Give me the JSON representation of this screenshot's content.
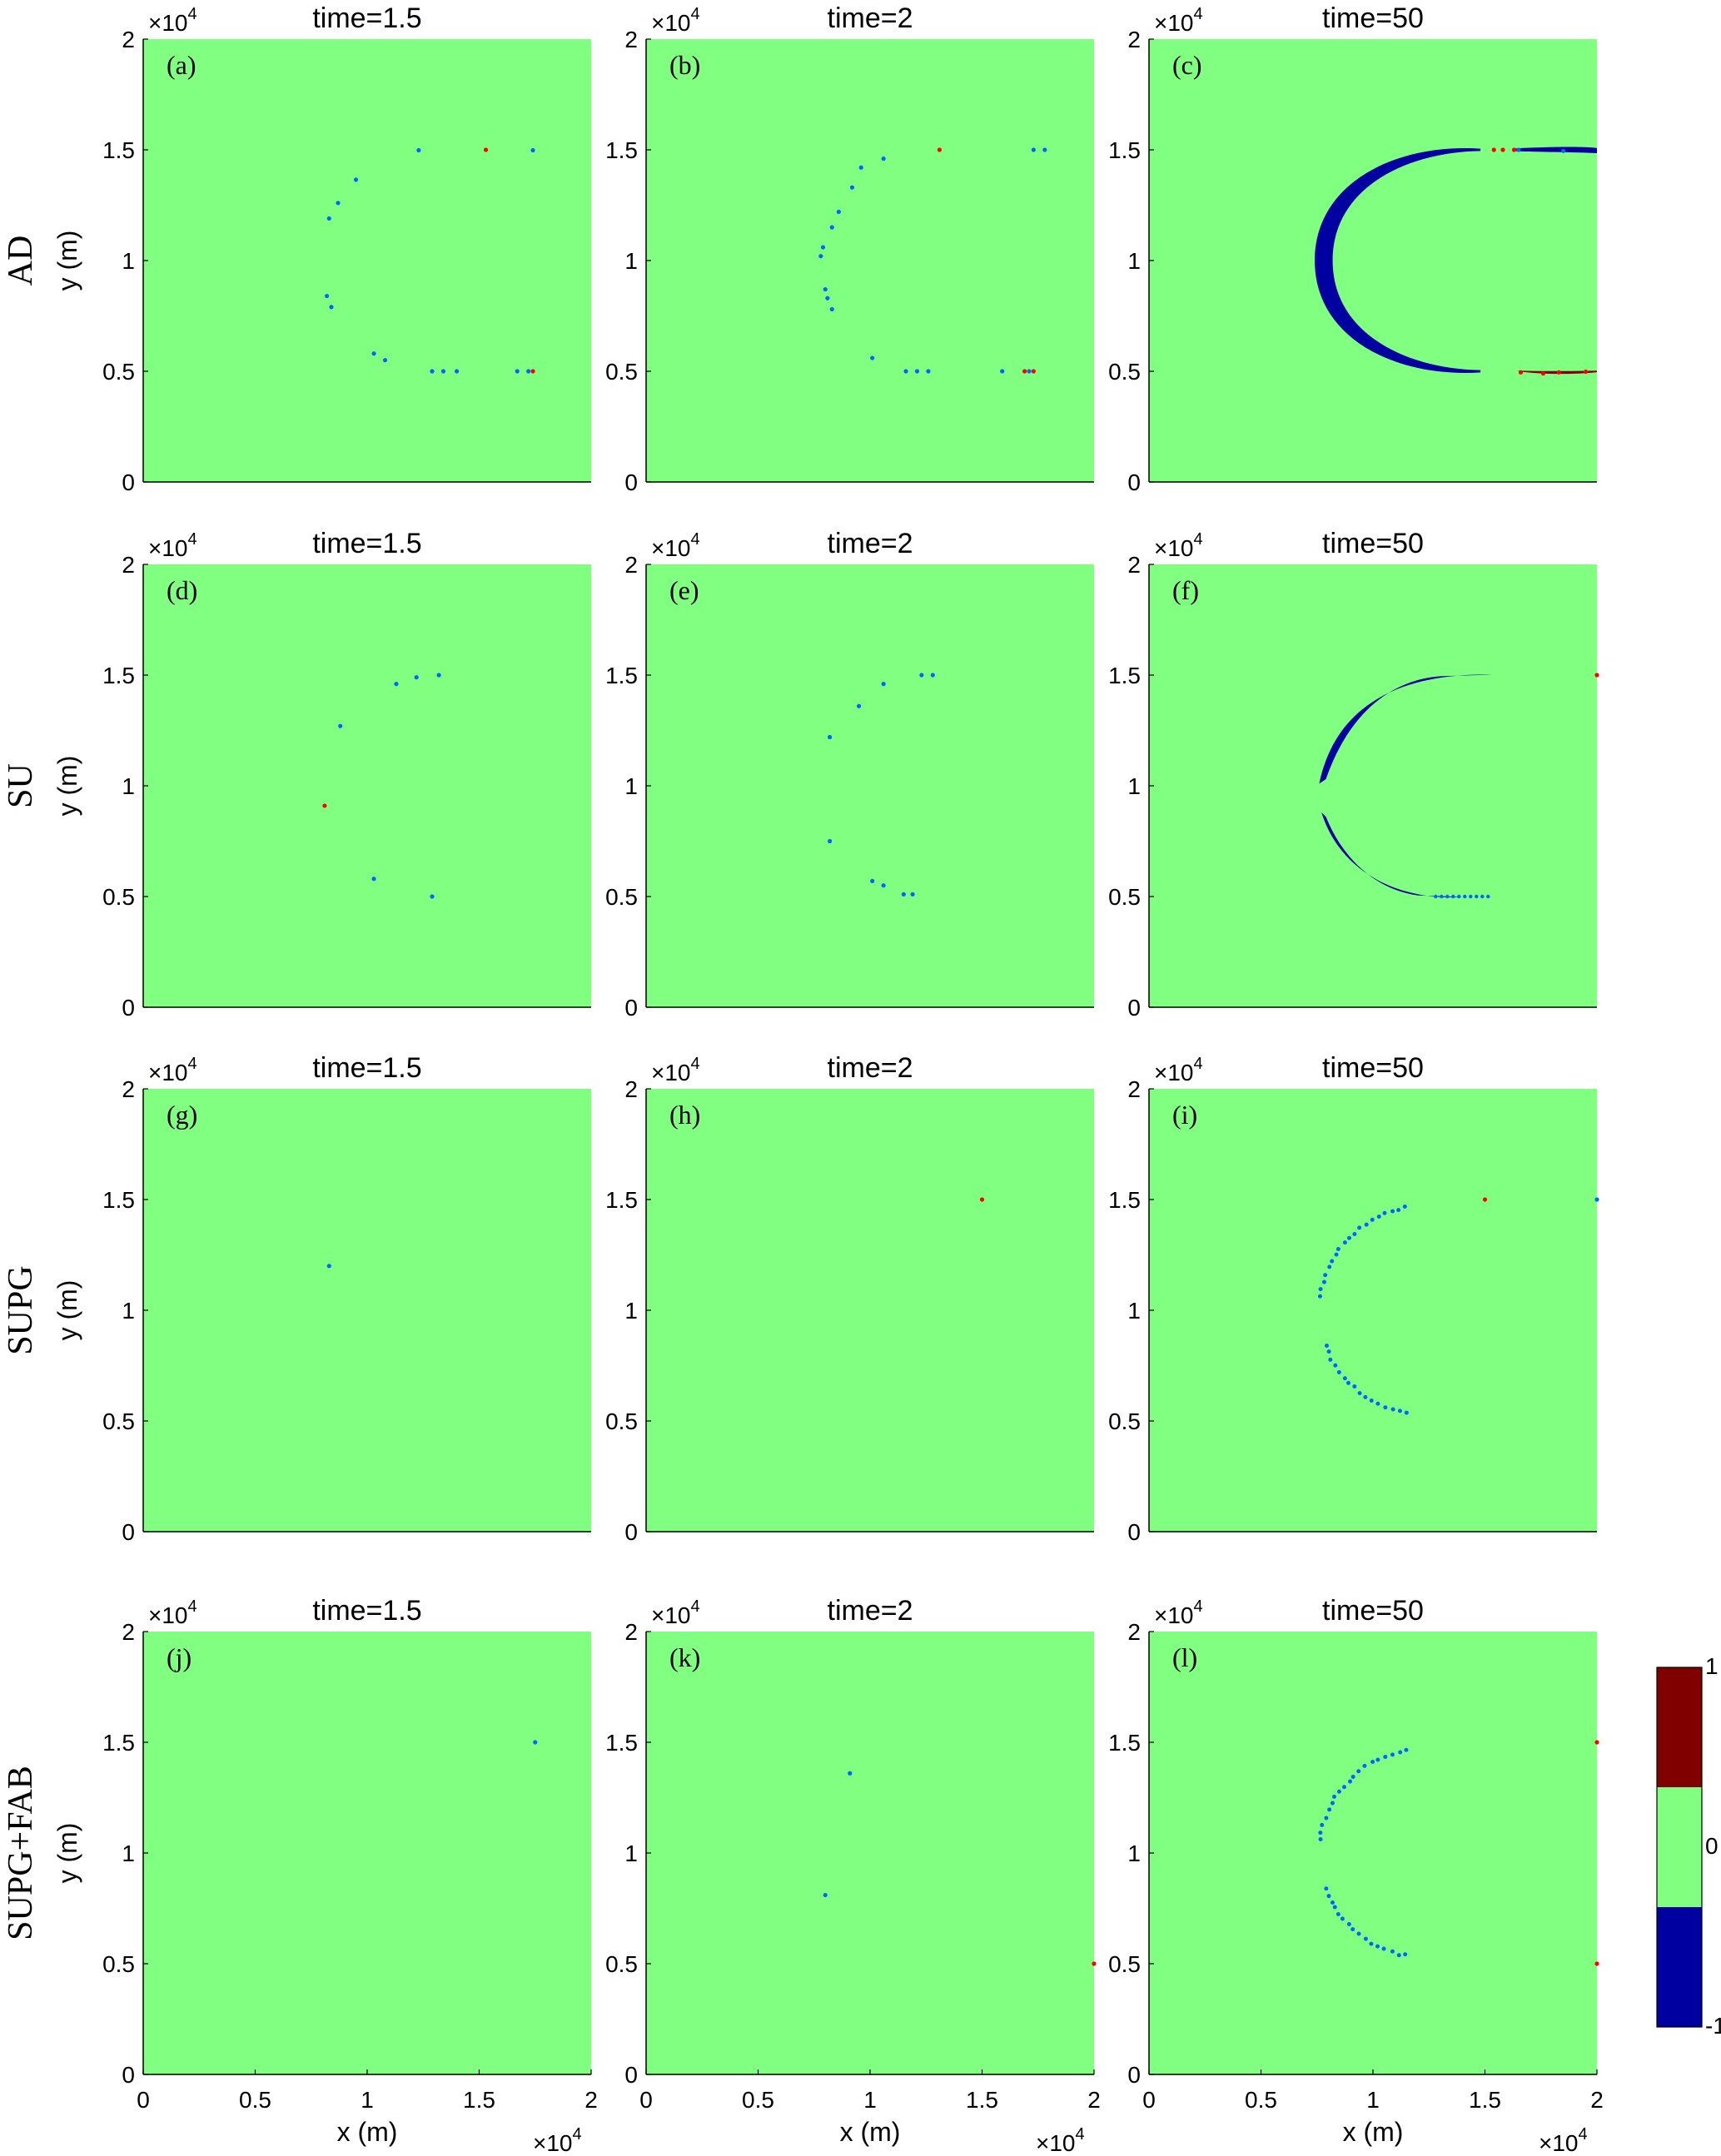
{
  "chart_data": {
    "type": "heatmap",
    "rows": [
      "AD",
      "SU",
      "SUPG",
      "SUPG+FAB"
    ],
    "columns": [
      {
        "time": "time=1.5"
      },
      {
        "time": "time=2"
      },
      {
        "time": "time=50"
      }
    ],
    "panel_labels": [
      "(a)",
      "(b)",
      "(c)",
      "(d)",
      "(e)",
      "(f)",
      "(g)",
      "(h)",
      "(i)",
      "(j)",
      "(k)",
      "(l)"
    ],
    "xlabel": "x (m)",
    "ylabel": "y (m)",
    "x_ticks": [
      "0",
      "0.5",
      "1",
      "1.5",
      "2"
    ],
    "y_ticks": [
      "0",
      "0.5",
      "1",
      "1.5",
      "2"
    ],
    "axis_multiplier": "×10",
    "axis_multiplier_exp": "4",
    "xlim": [
      0,
      20000
    ],
    "ylim": [
      0,
      20000
    ],
    "colorbar": {
      "ticks": [
        "-1",
        "0",
        "1"
      ],
      "range": [
        -1,
        1
      ]
    },
    "colors": {
      "neg": "#0000a0",
      "zero": "#80ff80",
      "pos": "#800000",
      "blue_point": "#0066ff",
      "red_point": "#ff0000"
    },
    "panels": [
      {
        "id": "a",
        "bands": [],
        "points": [
          [
            12300,
            14980,
            "b"
          ],
          [
            15300,
            15000,
            "r"
          ],
          [
            17400,
            14980,
            "b"
          ],
          [
            9500,
            13650,
            "b"
          ],
          [
            8700,
            12600,
            "b"
          ],
          [
            8300,
            11900,
            "b"
          ],
          [
            8200,
            8400,
            "b"
          ],
          [
            8400,
            7900,
            "b"
          ],
          [
            10300,
            5800,
            "b"
          ],
          [
            10800,
            5500,
            "b"
          ],
          [
            12900,
            5000,
            "b"
          ],
          [
            13400,
            5000,
            "b"
          ],
          [
            14000,
            5000,
            "b"
          ],
          [
            16700,
            5000,
            "b"
          ],
          [
            17400,
            5000,
            "r"
          ],
          [
            17200,
            5000,
            "b"
          ]
        ]
      },
      {
        "id": "b",
        "points": [
          [
            13100,
            15000,
            "r"
          ],
          [
            17300,
            15000,
            "b"
          ],
          [
            17800,
            15000,
            "b"
          ],
          [
            10600,
            14600,
            "b"
          ],
          [
            9600,
            14200,
            "b"
          ],
          [
            9200,
            13300,
            "b"
          ],
          [
            8600,
            12200,
            "b"
          ],
          [
            8300,
            11500,
            "b"
          ],
          [
            7900,
            10600,
            "b"
          ],
          [
            7800,
            10200,
            "b"
          ],
          [
            8000,
            8700,
            "b"
          ],
          [
            8100,
            8300,
            "b"
          ],
          [
            8300,
            7800,
            "b"
          ],
          [
            10100,
            5600,
            "b"
          ],
          [
            11600,
            5000,
            "b"
          ],
          [
            12100,
            5000,
            "b"
          ],
          [
            12600,
            5000,
            "b"
          ],
          [
            15900,
            5000,
            "b"
          ],
          [
            16900,
            5000,
            "r"
          ],
          [
            17300,
            5000,
            "r"
          ],
          [
            17100,
            5000,
            "b"
          ]
        ]
      },
      {
        "id": "c",
        "bands": [
          "upper",
          "lower"
        ],
        "points": [
          [
            15400,
            15000,
            "r"
          ],
          [
            15800,
            15000,
            "r"
          ],
          [
            16300,
            15000,
            "r"
          ],
          [
            16500,
            15000,
            "b"
          ],
          [
            18500,
            14950,
            "b"
          ],
          [
            16600,
            4950,
            "r"
          ],
          [
            17600,
            4900,
            "r"
          ],
          [
            18300,
            4950,
            "r"
          ],
          [
            19500,
            4980,
            "r"
          ]
        ]
      },
      {
        "id": "d",
        "points": [
          [
            11300,
            14600,
            "b"
          ],
          [
            12200,
            14900,
            "b"
          ],
          [
            13200,
            15000,
            "b"
          ],
          [
            8800,
            12700,
            "b"
          ],
          [
            8100,
            9100,
            "r"
          ],
          [
            10300,
            5800,
            "b"
          ],
          [
            12900,
            5000,
            "b"
          ]
        ]
      },
      {
        "id": "e",
        "points": [
          [
            12300,
            15000,
            "b"
          ],
          [
            12800,
            15000,
            "b"
          ],
          [
            10600,
            14600,
            "b"
          ],
          [
            9500,
            13600,
            "b"
          ],
          [
            8200,
            12200,
            "b"
          ],
          [
            8200,
            7500,
            "b"
          ],
          [
            10100,
            5700,
            "b"
          ],
          [
            10600,
            5500,
            "b"
          ],
          [
            11500,
            5100,
            "b"
          ],
          [
            11900,
            5100,
            "b"
          ]
        ]
      },
      {
        "id": "f",
        "bands": [
          "upper-thin",
          "lower-thin"
        ],
        "points": [
          [
            20000,
            15000,
            "r"
          ]
        ]
      },
      {
        "id": "g",
        "points": [
          [
            8300,
            12000,
            "b"
          ]
        ]
      },
      {
        "id": "h",
        "points": [
          [
            15000,
            15000,
            "r"
          ]
        ]
      },
      {
        "id": "i",
        "arc": true,
        "points": [
          [
            15000,
            15000,
            "r"
          ],
          [
            20000,
            15000,
            "b"
          ]
        ]
      },
      {
        "id": "j",
        "points": [
          [
            17500,
            15000,
            "b"
          ]
        ]
      },
      {
        "id": "k",
        "points": [
          [
            9100,
            13600,
            "b"
          ],
          [
            8000,
            8100,
            "b"
          ],
          [
            20000,
            5000,
            "r"
          ]
        ]
      },
      {
        "id": "l",
        "arc": true,
        "points": [
          [
            20000,
            15000,
            "r"
          ],
          [
            20000,
            5000,
            "r"
          ]
        ]
      }
    ]
  }
}
